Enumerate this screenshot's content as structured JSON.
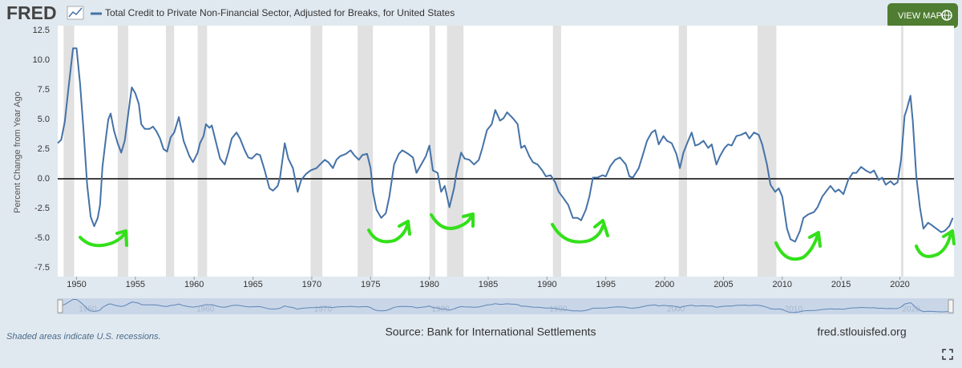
{
  "header": {
    "logo": "FRED",
    "button": "VIEW MAP"
  },
  "chart_data": {
    "type": "line",
    "ylabel": "Percent Change from Year Ago",
    "x": [
      1948.4,
      1948.7,
      1949.0,
      1949.3,
      1949.7,
      1950.0,
      1950.3,
      1950.6,
      1950.9,
      1951.2,
      1951.5,
      1951.8,
      1952.0,
      1952.2,
      1952.5,
      1952.7,
      1952.9,
      1953.2,
      1953.5,
      1953.8,
      1954.1,
      1954.4,
      1954.7,
      1955.0,
      1955.3,
      1955.5,
      1955.8,
      1956.2,
      1956.5,
      1956.8,
      1957.1,
      1957.4,
      1957.7,
      1958.0,
      1958.3,
      1958.7,
      1959.1,
      1959.6,
      1959.9,
      1960.3,
      1960.5,
      1960.8,
      1961.0,
      1961.3,
      1961.5,
      1961.9,
      1962.2,
      1962.6,
      1962.9,
      1963.2,
      1963.6,
      1963.9,
      1964.3,
      1964.6,
      1964.9,
      1965.3,
      1965.6,
      1966.0,
      1966.4,
      1966.7,
      1967.1,
      1967.3,
      1967.7,
      1968.0,
      1968.4,
      1968.8,
      1969.1,
      1969.5,
      1969.9,
      1970.4,
      1970.7,
      1971.1,
      1971.4,
      1971.8,
      1972.1,
      1972.4,
      1972.9,
      1973.3,
      1973.6,
      1974.0,
      1974.3,
      1974.7,
      1975.0,
      1975.2,
      1975.5,
      1975.9,
      1976.3,
      1976.6,
      1977.0,
      1977.4,
      1977.7,
      1978.2,
      1978.6,
      1978.9,
      1979.3,
      1979.7,
      1980.0,
      1980.3,
      1980.7,
      1981.0,
      1981.3,
      1981.7,
      1982.1,
      1982.3,
      1982.7,
      1983.0,
      1983.4,
      1983.8,
      1984.2,
      1984.5,
      1984.9,
      1985.3,
      1985.6,
      1986.0,
      1986.3,
      1986.6,
      1987.1,
      1987.5,
      1987.8,
      1988.1,
      1988.5,
      1988.8,
      1989.2,
      1989.6,
      1989.9,
      1990.3,
      1990.7,
      1991.0,
      1991.3,
      1991.8,
      1992.2,
      1992.6,
      1992.9,
      1993.3,
      1993.6,
      1993.9,
      1994.3,
      1994.7,
      1995.0,
      1995.4,
      1995.8,
      1996.2,
      1996.7,
      1997.0,
      1997.3,
      1997.8,
      1998.2,
      1998.5,
      1998.9,
      1999.2,
      1999.5,
      1999.9,
      2000.2,
      2000.6,
      2001.0,
      2001.3,
      2001.6,
      2002.0,
      2002.3,
      2002.6,
      2002.9,
      2003.3,
      2003.7,
      2004.0,
      2004.4,
      2004.7,
      2005.1,
      2005.4,
      2005.7,
      2006.1,
      2006.5,
      2006.9,
      2007.2,
      2007.6,
      2008.0,
      2008.3,
      2008.7,
      2009.0,
      2009.4,
      2009.7,
      2010.0,
      2010.4,
      2010.7,
      2011.1,
      2011.5,
      2011.8,
      2012.2,
      2012.7,
      2013.0,
      2013.4,
      2013.7,
      2014.1,
      2014.5,
      2014.8,
      2015.2,
      2015.6,
      2016.0,
      2016.3,
      2016.7,
      2017.1,
      2017.5,
      2017.8,
      2018.2,
      2018.5,
      2018.8,
      2019.2,
      2019.5,
      2019.8,
      2020.1,
      2020.4,
      2020.6,
      2020.9,
      2021.1,
      2021.4,
      2021.7,
      2022.0,
      2022.4,
      2022.7,
      2023.1,
      2023.5,
      2023.8,
      2024.2,
      2024.5
    ],
    "series": [
      {
        "name": "Total Credit to Private Non-Financial Sector, Adjusted for Breaks, for United States",
        "color": "#4572a7",
        "values": [
          3.0,
          3.3,
          4.8,
          7.5,
          11.0,
          11.0,
          8.0,
          4.0,
          -0.5,
          -3.2,
          -4.0,
          -3.3,
          -2.2,
          1.0,
          3.5,
          5.0,
          5.5,
          4.0,
          3.0,
          2.2,
          3.2,
          5.5,
          7.7,
          7.2,
          6.3,
          4.6,
          4.2,
          4.2,
          4.4,
          4.0,
          3.4,
          2.5,
          2.3,
          3.5,
          3.9,
          5.2,
          3.2,
          1.9,
          1.4,
          2.2,
          3.0,
          3.6,
          4.6,
          4.3,
          4.5,
          2.9,
          1.7,
          1.2,
          2.2,
          3.4,
          3.9,
          3.4,
          2.4,
          1.8,
          1.7,
          2.1,
          2.0,
          0.7,
          -0.8,
          -1.0,
          -0.6,
          0.1,
          3.0,
          1.7,
          0.9,
          -1.1,
          -0.1,
          0.4,
          0.7,
          0.9,
          1.2,
          1.6,
          1.4,
          0.9,
          1.6,
          1.9,
          2.1,
          2.4,
          2.0,
          1.6,
          2.0,
          2.1,
          0.9,
          -1.1,
          -2.6,
          -3.3,
          -2.9,
          -1.5,
          1.2,
          2.1,
          2.4,
          2.1,
          1.8,
          0.5,
          1.2,
          1.9,
          2.8,
          0.7,
          0.5,
          -1.1,
          -0.6,
          -2.4,
          -0.8,
          0.5,
          2.2,
          1.7,
          1.6,
          1.2,
          1.6,
          2.6,
          4.1,
          4.6,
          5.8,
          4.9,
          5.1,
          5.6,
          5.1,
          4.6,
          2.6,
          2.8,
          1.9,
          1.4,
          1.2,
          0.7,
          0.2,
          0.3,
          -0.3,
          -1.1,
          -1.5,
          -2.2,
          -3.3,
          -3.3,
          -3.5,
          -2.6,
          -1.5,
          0.1,
          0.1,
          0.3,
          0.2,
          1.1,
          1.6,
          1.8,
          1.2,
          0.2,
          0.1,
          0.9,
          2.2,
          3.2,
          3.9,
          4.1,
          2.9,
          3.6,
          3.2,
          3.0,
          2.1,
          0.9,
          2.2,
          3.2,
          3.9,
          2.8,
          2.9,
          3.2,
          2.6,
          2.9,
          1.2,
          1.9,
          2.6,
          2.9,
          2.8,
          3.6,
          3.7,
          3.9,
          3.4,
          3.9,
          3.7,
          2.9,
          1.2,
          -0.5,
          -1.1,
          -0.8,
          -1.5,
          -4.2,
          -5.1,
          -5.3,
          -4.4,
          -3.3,
          -3.0,
          -2.8,
          -2.4,
          -1.5,
          -1.1,
          -0.6,
          -1.1,
          -0.9,
          -1.3,
          -0.1,
          0.5,
          0.5,
          1.0,
          0.7,
          0.5,
          0.7,
          -0.1,
          0.1,
          -0.5,
          -0.2,
          -0.5,
          -0.3,
          1.6,
          5.3,
          5.9,
          7.0,
          4.9,
          0.2,
          -2.4,
          -4.2,
          -3.7,
          -3.9,
          -4.2,
          -4.5,
          -4.4,
          -4.0,
          -3.3
        ]
      }
    ],
    "recessions": [
      [
        1948.9,
        1949.8
      ],
      [
        1953.5,
        1954.4
      ],
      [
        1957.6,
        1958.3
      ],
      [
        1960.3,
        1961.1
      ],
      [
        1969.9,
        1970.9
      ],
      [
        1973.9,
        1975.2
      ],
      [
        1980.0,
        1980.5
      ],
      [
        1981.5,
        1982.9
      ],
      [
        1990.5,
        1991.2
      ],
      [
        2001.2,
        2001.9
      ],
      [
        2007.9,
        2009.5
      ],
      [
        2020.1,
        2020.3
      ]
    ],
    "reference_line": 0,
    "xlim": [
      1948.4,
      2024.6
    ],
    "xticks": [
      1950,
      1955,
      1960,
      1965,
      1970,
      1975,
      1980,
      1985,
      1990,
      1995,
      2000,
      2005,
      2010,
      2015,
      2020
    ],
    "ylim": [
      -7.5,
      12.5
    ],
    "yticks": [
      12.5,
      {
        "value": 10,
        "label": "10.0"
      },
      7.5,
      {
        "value": 5,
        "label": "5.0"
      },
      2.5,
      {
        "value": 0,
        "label": "0.0"
      },
      -2.5,
      {
        "value": -5,
        "label": "-5.0"
      },
      -7.5
    ],
    "navigator_ticks": [
      1950,
      1960,
      1970,
      1980,
      1990,
      2000,
      2010,
      2020
    ],
    "grid": false
  },
  "footer": {
    "note": "Shaded areas indicate U.S. recessions.",
    "source": "Source: Bank for International Settlements",
    "site": "fred.stlouisfed.org"
  }
}
